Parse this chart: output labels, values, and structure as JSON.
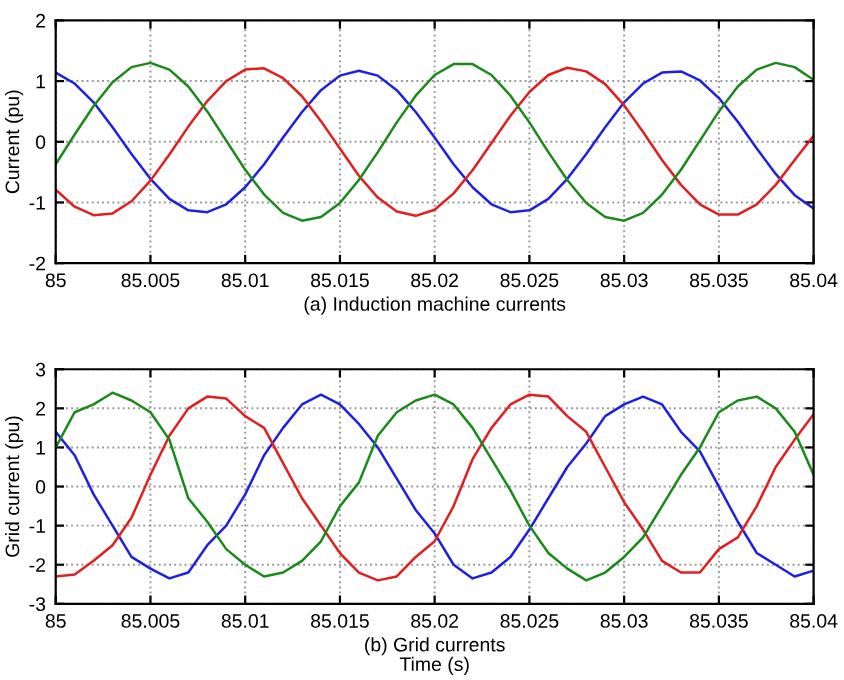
{
  "chart_data": [
    {
      "type": "line",
      "ylabel": "Current (pu)",
      "annotations": [
        "(a) Induction machine currents"
      ],
      "x": [
        85,
        85.001,
        85.002,
        85.003,
        85.004,
        85.005,
        85.006,
        85.007,
        85.008,
        85.009,
        85.01,
        85.011,
        85.012,
        85.013,
        85.014,
        85.015,
        85.016,
        85.017,
        85.018,
        85.019,
        85.02,
        85.021,
        85.022,
        85.023,
        85.024,
        85.025,
        85.026,
        85.027,
        85.028,
        85.029,
        85.03,
        85.031,
        85.032,
        85.033,
        85.034,
        85.035,
        85.036,
        85.037,
        85.038,
        85.039,
        85.04
      ],
      "series": [
        {
          "color": "#2020e0",
          "values": [
            1.14,
            0.96,
            0.65,
            0.24,
            -0.2,
            -0.61,
            -0.94,
            -1.13,
            -1.16,
            -1.03,
            -0.75,
            -0.37,
            0.07,
            0.49,
            0.85,
            1.09,
            1.17,
            1.09,
            0.85,
            0.49,
            0.07,
            -0.37,
            -0.75,
            -1.03,
            -1.16,
            -1.13,
            -0.94,
            -0.61,
            -0.2,
            0.24,
            0.65,
            0.96,
            1.14,
            1.16,
            1.01,
            0.72,
            0.33,
            -0.11,
            -0.53,
            -0.88,
            -1.1
          ]
        },
        {
          "color": "#e02020",
          "values": [
            -0.79,
            -1.07,
            -1.21,
            -1.18,
            -0.98,
            -0.64,
            -0.21,
            0.25,
            0.67,
            1.0,
            1.19,
            1.21,
            1.05,
            0.75,
            0.34,
            -0.11,
            -0.56,
            -0.92,
            -1.15,
            -1.22,
            -1.12,
            -0.85,
            -0.47,
            -0.02,
            0.43,
            0.82,
            1.1,
            1.22,
            1.16,
            0.95,
            0.6,
            0.16,
            -0.3,
            -0.71,
            -1.03,
            -1.2,
            -1.2,
            -1.03,
            -0.71,
            -0.3,
            0.1
          ]
        },
        {
          "color": "#1a8a1a",
          "values": [
            -0.37,
            0.12,
            0.59,
            0.98,
            1.23,
            1.3,
            1.19,
            0.91,
            0.5,
            0.02,
            -0.46,
            -0.87,
            -1.17,
            -1.3,
            -1.24,
            -1.01,
            -0.63,
            -0.17,
            0.32,
            0.76,
            1.1,
            1.28,
            1.28,
            1.1,
            0.76,
            0.32,
            -0.17,
            -0.63,
            -1.01,
            -1.24,
            -1.3,
            -1.17,
            -0.87,
            -0.46,
            0.02,
            0.5,
            0.91,
            1.19,
            1.3,
            1.23,
            1.02
          ]
        }
      ],
      "xlim": [
        85,
        85.04
      ],
      "xticks": [
        85,
        85.005,
        85.01,
        85.015,
        85.02,
        85.025,
        85.03,
        85.035,
        85.04
      ],
      "ylim": [
        -2,
        2
      ],
      "yticks": [
        -2,
        -1,
        0,
        1,
        2
      ],
      "grid": true,
      "line_style": "solid",
      "marker": "none"
    },
    {
      "type": "line",
      "ylabel": "Grid current (pu)",
      "xlabel": "Time (s)",
      "annotations": [
        "(b) Grid currents"
      ],
      "x": [
        85,
        85.001,
        85.002,
        85.003,
        85.004,
        85.005,
        85.006,
        85.007,
        85.008,
        85.009,
        85.01,
        85.011,
        85.012,
        85.013,
        85.014,
        85.015,
        85.016,
        85.017,
        85.018,
        85.019,
        85.02,
        85.021,
        85.022,
        85.023,
        85.024,
        85.025,
        85.026,
        85.027,
        85.028,
        85.029,
        85.03,
        85.031,
        85.032,
        85.033,
        85.034,
        85.035,
        85.036,
        85.037,
        85.038,
        85.039,
        85.04
      ],
      "series": [
        {
          "color": "#2020e0",
          "values": [
            1.4,
            0.8,
            -0.2,
            -1.0,
            -1.8,
            -2.1,
            -2.35,
            -2.2,
            -1.5,
            -1.0,
            -0.2,
            0.8,
            1.5,
            2.1,
            2.35,
            2.1,
            1.6,
            1.0,
            0.2,
            -0.6,
            -1.2,
            -2.0,
            -2.35,
            -2.2,
            -1.8,
            -1.1,
            -0.3,
            0.5,
            1.1,
            1.8,
            2.1,
            2.3,
            2.1,
            1.4,
            0.9,
            0.0,
            -0.9,
            -1.7,
            -2.0,
            -2.3,
            -2.15
          ]
        },
        {
          "color": "#e02020",
          "values": [
            -2.3,
            -2.25,
            -1.9,
            -1.5,
            -0.8,
            0.3,
            1.3,
            2.0,
            2.3,
            2.25,
            1.8,
            1.5,
            0.6,
            -0.3,
            -1.0,
            -1.7,
            -2.2,
            -2.4,
            -2.3,
            -1.8,
            -1.4,
            -0.5,
            0.7,
            1.5,
            2.1,
            2.35,
            2.3,
            1.8,
            1.4,
            0.5,
            -0.4,
            -1.1,
            -1.9,
            -2.2,
            -2.2,
            -1.6,
            -1.3,
            -0.5,
            0.5,
            1.2,
            1.85
          ]
        },
        {
          "color": "#1a8a1a",
          "values": [
            1.0,
            1.9,
            2.1,
            2.4,
            2.2,
            1.9,
            1.2,
            -0.3,
            -0.9,
            -1.6,
            -2.0,
            -2.3,
            -2.2,
            -1.9,
            -1.4,
            -0.5,
            0.1,
            1.3,
            1.9,
            2.2,
            2.35,
            2.1,
            1.5,
            0.7,
            -0.1,
            -1.0,
            -1.7,
            -2.1,
            -2.4,
            -2.2,
            -1.8,
            -1.3,
            -0.5,
            0.3,
            1.0,
            1.9,
            2.2,
            2.3,
            2.0,
            1.4,
            0.3
          ]
        }
      ],
      "xlim": [
        85,
        85.04
      ],
      "xticks": [
        85,
        85.005,
        85.01,
        85.015,
        85.02,
        85.025,
        85.03,
        85.035,
        85.04
      ],
      "ylim": [
        -3,
        3
      ],
      "yticks": [
        -3,
        -2,
        -1,
        0,
        1,
        2,
        3
      ],
      "grid": true,
      "line_style": "solid",
      "marker": "none"
    }
  ]
}
